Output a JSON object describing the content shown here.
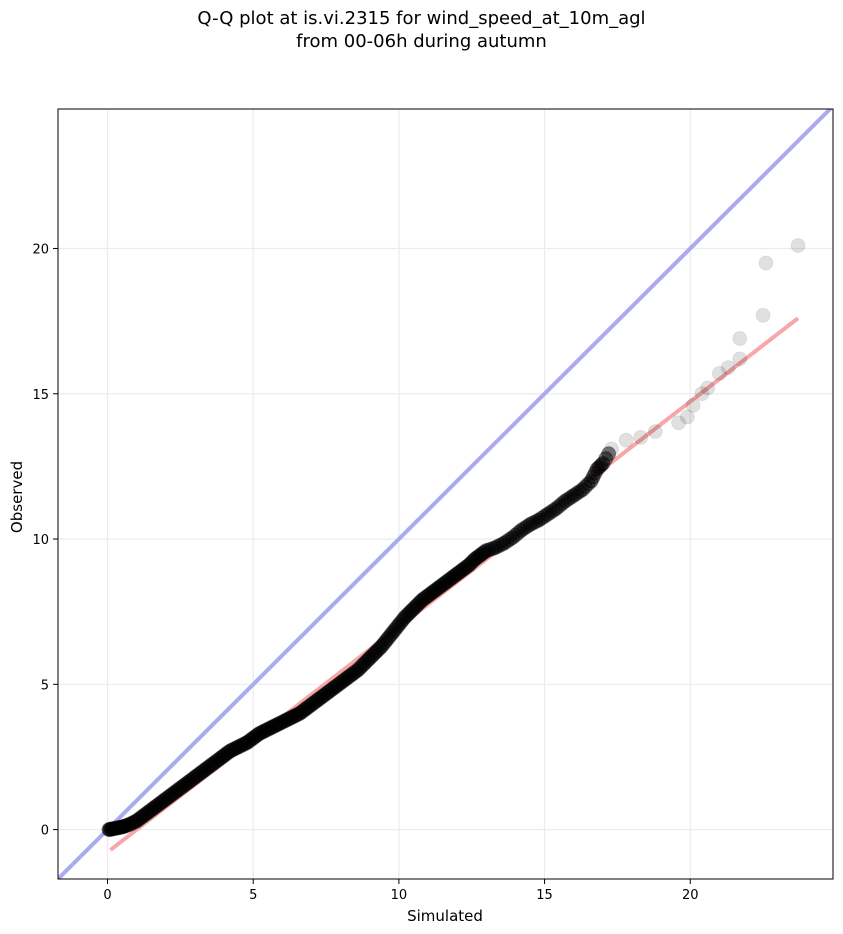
{
  "chart_data": {
    "type": "scatter",
    "title_line1": "Q-Q plot at is.vi.2315 for wind_speed_at_10m_agl",
    "title_line2": "from 00-06h during autumn",
    "xlabel": "Simulated",
    "ylabel": "Observed",
    "xlim": [
      -1.7,
      24.9
    ],
    "ylim": [
      -1.7,
      24.8
    ],
    "grid": true,
    "x_ticks": [
      0,
      5,
      10,
      15,
      20
    ],
    "y_ticks": [
      0,
      5,
      10,
      15,
      20
    ],
    "x_tick_labels": [
      "0",
      "5",
      "10",
      "15",
      "20"
    ],
    "y_tick_labels": [
      "0",
      "5",
      "10",
      "15",
      "20"
    ],
    "identity_line": {
      "from": [
        -1.7,
        -1.7
      ],
      "to": [
        24.9,
        24.9
      ],
      "color": "#aaaaf0"
    },
    "fit_line": {
      "from": [
        0.1,
        -0.7
      ],
      "to": [
        23.7,
        17.6
      ],
      "color": "#f7a7a7"
    },
    "point_color": "#000000",
    "series": [
      {
        "points": [
          [
            0.05,
            0.0
          ],
          [
            0.15,
            0.02
          ],
          [
            0.3,
            0.05
          ],
          [
            0.45,
            0.08
          ],
          [
            0.6,
            0.12
          ],
          [
            0.8,
            0.2
          ],
          [
            1.0,
            0.3
          ],
          [
            1.2,
            0.45
          ],
          [
            1.4,
            0.6
          ],
          [
            1.6,
            0.75
          ],
          [
            1.8,
            0.9
          ],
          [
            2.0,
            1.05
          ],
          [
            2.2,
            1.2
          ],
          [
            2.4,
            1.35
          ],
          [
            2.6,
            1.5
          ],
          [
            2.8,
            1.65
          ],
          [
            3.0,
            1.8
          ],
          [
            3.2,
            1.95
          ],
          [
            3.4,
            2.1
          ],
          [
            3.6,
            2.25
          ],
          [
            3.8,
            2.4
          ],
          [
            4.0,
            2.55
          ],
          [
            4.2,
            2.7
          ],
          [
            4.4,
            2.8
          ],
          [
            4.6,
            2.9
          ],
          [
            4.8,
            3.0
          ],
          [
            5.0,
            3.15
          ],
          [
            5.2,
            3.3
          ],
          [
            5.4,
            3.4
          ],
          [
            5.6,
            3.5
          ],
          [
            5.8,
            3.6
          ],
          [
            6.0,
            3.7
          ],
          [
            6.2,
            3.8
          ],
          [
            6.4,
            3.9
          ],
          [
            6.6,
            4.0
          ],
          [
            6.8,
            4.15
          ],
          [
            7.0,
            4.3
          ],
          [
            7.2,
            4.45
          ],
          [
            7.4,
            4.6
          ],
          [
            7.6,
            4.75
          ],
          [
            7.8,
            4.9
          ],
          [
            8.0,
            5.05
          ],
          [
            8.2,
            5.2
          ],
          [
            8.4,
            5.35
          ],
          [
            8.6,
            5.5
          ],
          [
            8.8,
            5.7
          ],
          [
            9.0,
            5.9
          ],
          [
            9.2,
            6.1
          ],
          [
            9.4,
            6.3
          ],
          [
            9.6,
            6.55
          ],
          [
            9.8,
            6.8
          ],
          [
            10.0,
            7.05
          ],
          [
            10.2,
            7.3
          ],
          [
            10.4,
            7.5
          ],
          [
            10.6,
            7.7
          ],
          [
            10.8,
            7.9
          ],
          [
            11.0,
            8.05
          ],
          [
            11.2,
            8.2
          ],
          [
            11.4,
            8.35
          ],
          [
            11.6,
            8.5
          ],
          [
            11.8,
            8.65
          ],
          [
            12.0,
            8.8
          ],
          [
            12.2,
            8.95
          ],
          [
            12.4,
            9.1
          ],
          [
            12.6,
            9.3
          ],
          [
            12.8,
            9.45
          ],
          [
            13.0,
            9.6
          ],
          [
            13.3,
            9.7
          ],
          [
            13.6,
            9.85
          ],
          [
            13.9,
            10.05
          ],
          [
            14.2,
            10.3
          ],
          [
            14.5,
            10.5
          ],
          [
            14.8,
            10.65
          ],
          [
            15.1,
            10.85
          ],
          [
            15.4,
            11.05
          ],
          [
            15.7,
            11.3
          ],
          [
            16.0,
            11.5
          ],
          [
            16.3,
            11.7
          ],
          [
            16.6,
            12.0
          ],
          [
            16.8,
            12.4
          ],
          [
            17.0,
            12.6
          ],
          [
            17.3,
            13.1
          ],
          [
            17.8,
            13.4
          ],
          [
            18.3,
            13.5
          ],
          [
            18.8,
            13.7
          ],
          [
            19.6,
            14.0
          ],
          [
            19.9,
            14.2
          ],
          [
            20.1,
            14.6
          ],
          [
            20.4,
            15.0
          ],
          [
            20.6,
            15.2
          ],
          [
            21.0,
            15.7
          ],
          [
            21.3,
            15.9
          ],
          [
            21.7,
            16.2
          ],
          [
            21.7,
            16.9
          ],
          [
            22.5,
            17.7
          ],
          [
            22.6,
            19.5
          ],
          [
            23.7,
            20.1
          ]
        ]
      }
    ]
  }
}
